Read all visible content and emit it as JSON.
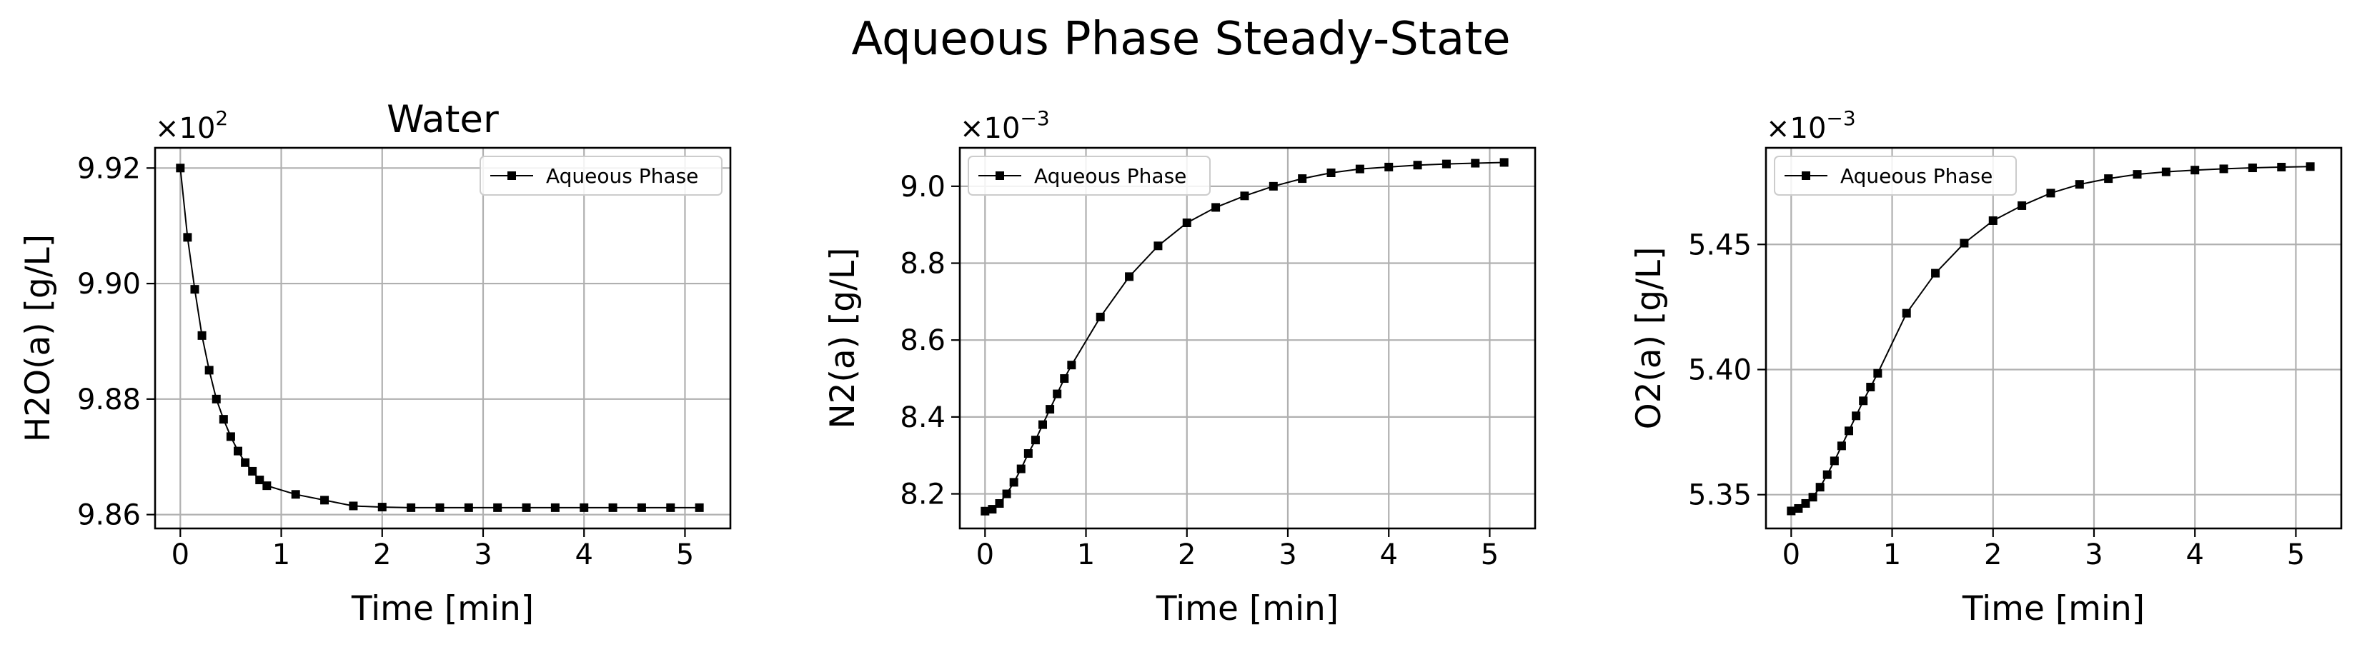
{
  "suptitle": "Aqueous Phase Steady-State",
  "chart_data": [
    {
      "type": "line",
      "title": "Water",
      "xlabel": "Time [min]",
      "ylabel": "H2O(a) [g/L]",
      "multiplier_base": "×10",
      "multiplier_exp": "2",
      "xlim": [
        -0.25,
        5.45
      ],
      "ylim": [
        9.8576,
        9.9235
      ],
      "xticks": [
        0,
        1,
        2,
        3,
        4,
        5
      ],
      "xtick_labels": [
        "0",
        "1",
        "2",
        "3",
        "4",
        "5"
      ],
      "yticks": [
        9.86,
        9.88,
        9.9,
        9.92
      ],
      "ytick_labels": [
        "9.86",
        "9.88",
        "9.90",
        "9.92"
      ],
      "grid": true,
      "legend_position": "upper right",
      "series": [
        {
          "name": "Aqueous Phase",
          "color": "#000000",
          "marker": "square",
          "x": [
            0,
            0.0714,
            0.1429,
            0.2143,
            0.2857,
            0.3571,
            0.4286,
            0.5,
            0.5714,
            0.6429,
            0.7143,
            0.7857,
            0.8571,
            1.1429,
            1.4286,
            1.7143,
            2.0,
            2.2857,
            2.5714,
            2.8571,
            3.1429,
            3.4286,
            3.7143,
            4.0,
            4.2857,
            4.5714,
            4.8571,
            5.1429
          ],
          "y": [
            9.92,
            9.908,
            9.899,
            9.891,
            9.885,
            9.88,
            9.8765,
            9.8735,
            9.871,
            9.869,
            9.8675,
            9.866,
            9.865,
            9.8635,
            9.8625,
            9.8615,
            9.8613,
            9.8612,
            9.8612,
            9.8612,
            9.8612,
            9.8612,
            9.8612,
            9.8612,
            9.8612,
            9.8612,
            9.8612,
            9.8612
          ]
        }
      ]
    },
    {
      "type": "line",
      "title": "",
      "xlabel": "Time [min]",
      "ylabel": "N2(a) [g/L]",
      "multiplier_base": "×10",
      "multiplier_exp": "−3",
      "xlim": [
        -0.25,
        5.45
      ],
      "ylim": [
        8.11,
        9.1
      ],
      "xticks": [
        0,
        1,
        2,
        3,
        4,
        5
      ],
      "xtick_labels": [
        "0",
        "1",
        "2",
        "3",
        "4",
        "5"
      ],
      "yticks": [
        8.2,
        8.4,
        8.6,
        8.8,
        9.0
      ],
      "ytick_labels": [
        "8.2",
        "8.4",
        "8.6",
        "8.8",
        "9.0"
      ],
      "grid": true,
      "legend_position": "upper left",
      "series": [
        {
          "name": "Aqueous Phase",
          "color": "#000000",
          "marker": "square",
          "x": [
            0,
            0.0714,
            0.1429,
            0.2143,
            0.2857,
            0.3571,
            0.4286,
            0.5,
            0.5714,
            0.6429,
            0.7143,
            0.7857,
            0.8571,
            1.1429,
            1.4286,
            1.7143,
            2.0,
            2.2857,
            2.5714,
            2.8571,
            3.1429,
            3.4286,
            3.7143,
            4.0,
            4.2857,
            4.5714,
            4.8571,
            5.1429
          ],
          "y": [
            8.155,
            8.16,
            8.175,
            8.2,
            8.23,
            8.265,
            8.305,
            8.34,
            8.38,
            8.42,
            8.46,
            8.5,
            8.535,
            8.66,
            8.765,
            8.845,
            8.905,
            8.945,
            8.975,
            9.0,
            9.02,
            9.035,
            9.045,
            9.05,
            9.055,
            9.058,
            9.06,
            9.062
          ]
        }
      ]
    },
    {
      "type": "line",
      "title": "",
      "xlabel": "Time [min]",
      "ylabel": "O2(a) [g/L]",
      "multiplier_base": "×10",
      "multiplier_exp": "−3",
      "xlim": [
        -0.25,
        5.45
      ],
      "ylim": [
        5.3365,
        5.4886
      ],
      "xticks": [
        0,
        1,
        2,
        3,
        4,
        5
      ],
      "xtick_labels": [
        "0",
        "1",
        "2",
        "3",
        "4",
        "5"
      ],
      "yticks": [
        5.35,
        5.4,
        5.45
      ],
      "ytick_labels": [
        "5.35",
        "5.40",
        "5.45"
      ],
      "grid": true,
      "legend_position": "upper left",
      "series": [
        {
          "name": "Aqueous Phase",
          "color": "#000000",
          "marker": "square",
          "x": [
            0,
            0.0714,
            0.1429,
            0.2143,
            0.2857,
            0.3571,
            0.4286,
            0.5,
            0.5714,
            0.6429,
            0.7143,
            0.7857,
            0.8571,
            1.1429,
            1.4286,
            1.7143,
            2.0,
            2.2857,
            2.5714,
            2.8571,
            3.1429,
            3.4286,
            3.7143,
            4.0,
            4.2857,
            4.5714,
            4.8571,
            5.1429
          ],
          "y": [
            5.3435,
            5.3445,
            5.3465,
            5.349,
            5.353,
            5.358,
            5.3635,
            5.3695,
            5.3755,
            5.3815,
            5.3875,
            5.393,
            5.3985,
            5.4225,
            5.4385,
            5.4505,
            5.4595,
            5.4655,
            5.4705,
            5.474,
            5.4763,
            5.478,
            5.479,
            5.4797,
            5.4802,
            5.4806,
            5.4809,
            5.4811
          ]
        }
      ]
    }
  ]
}
